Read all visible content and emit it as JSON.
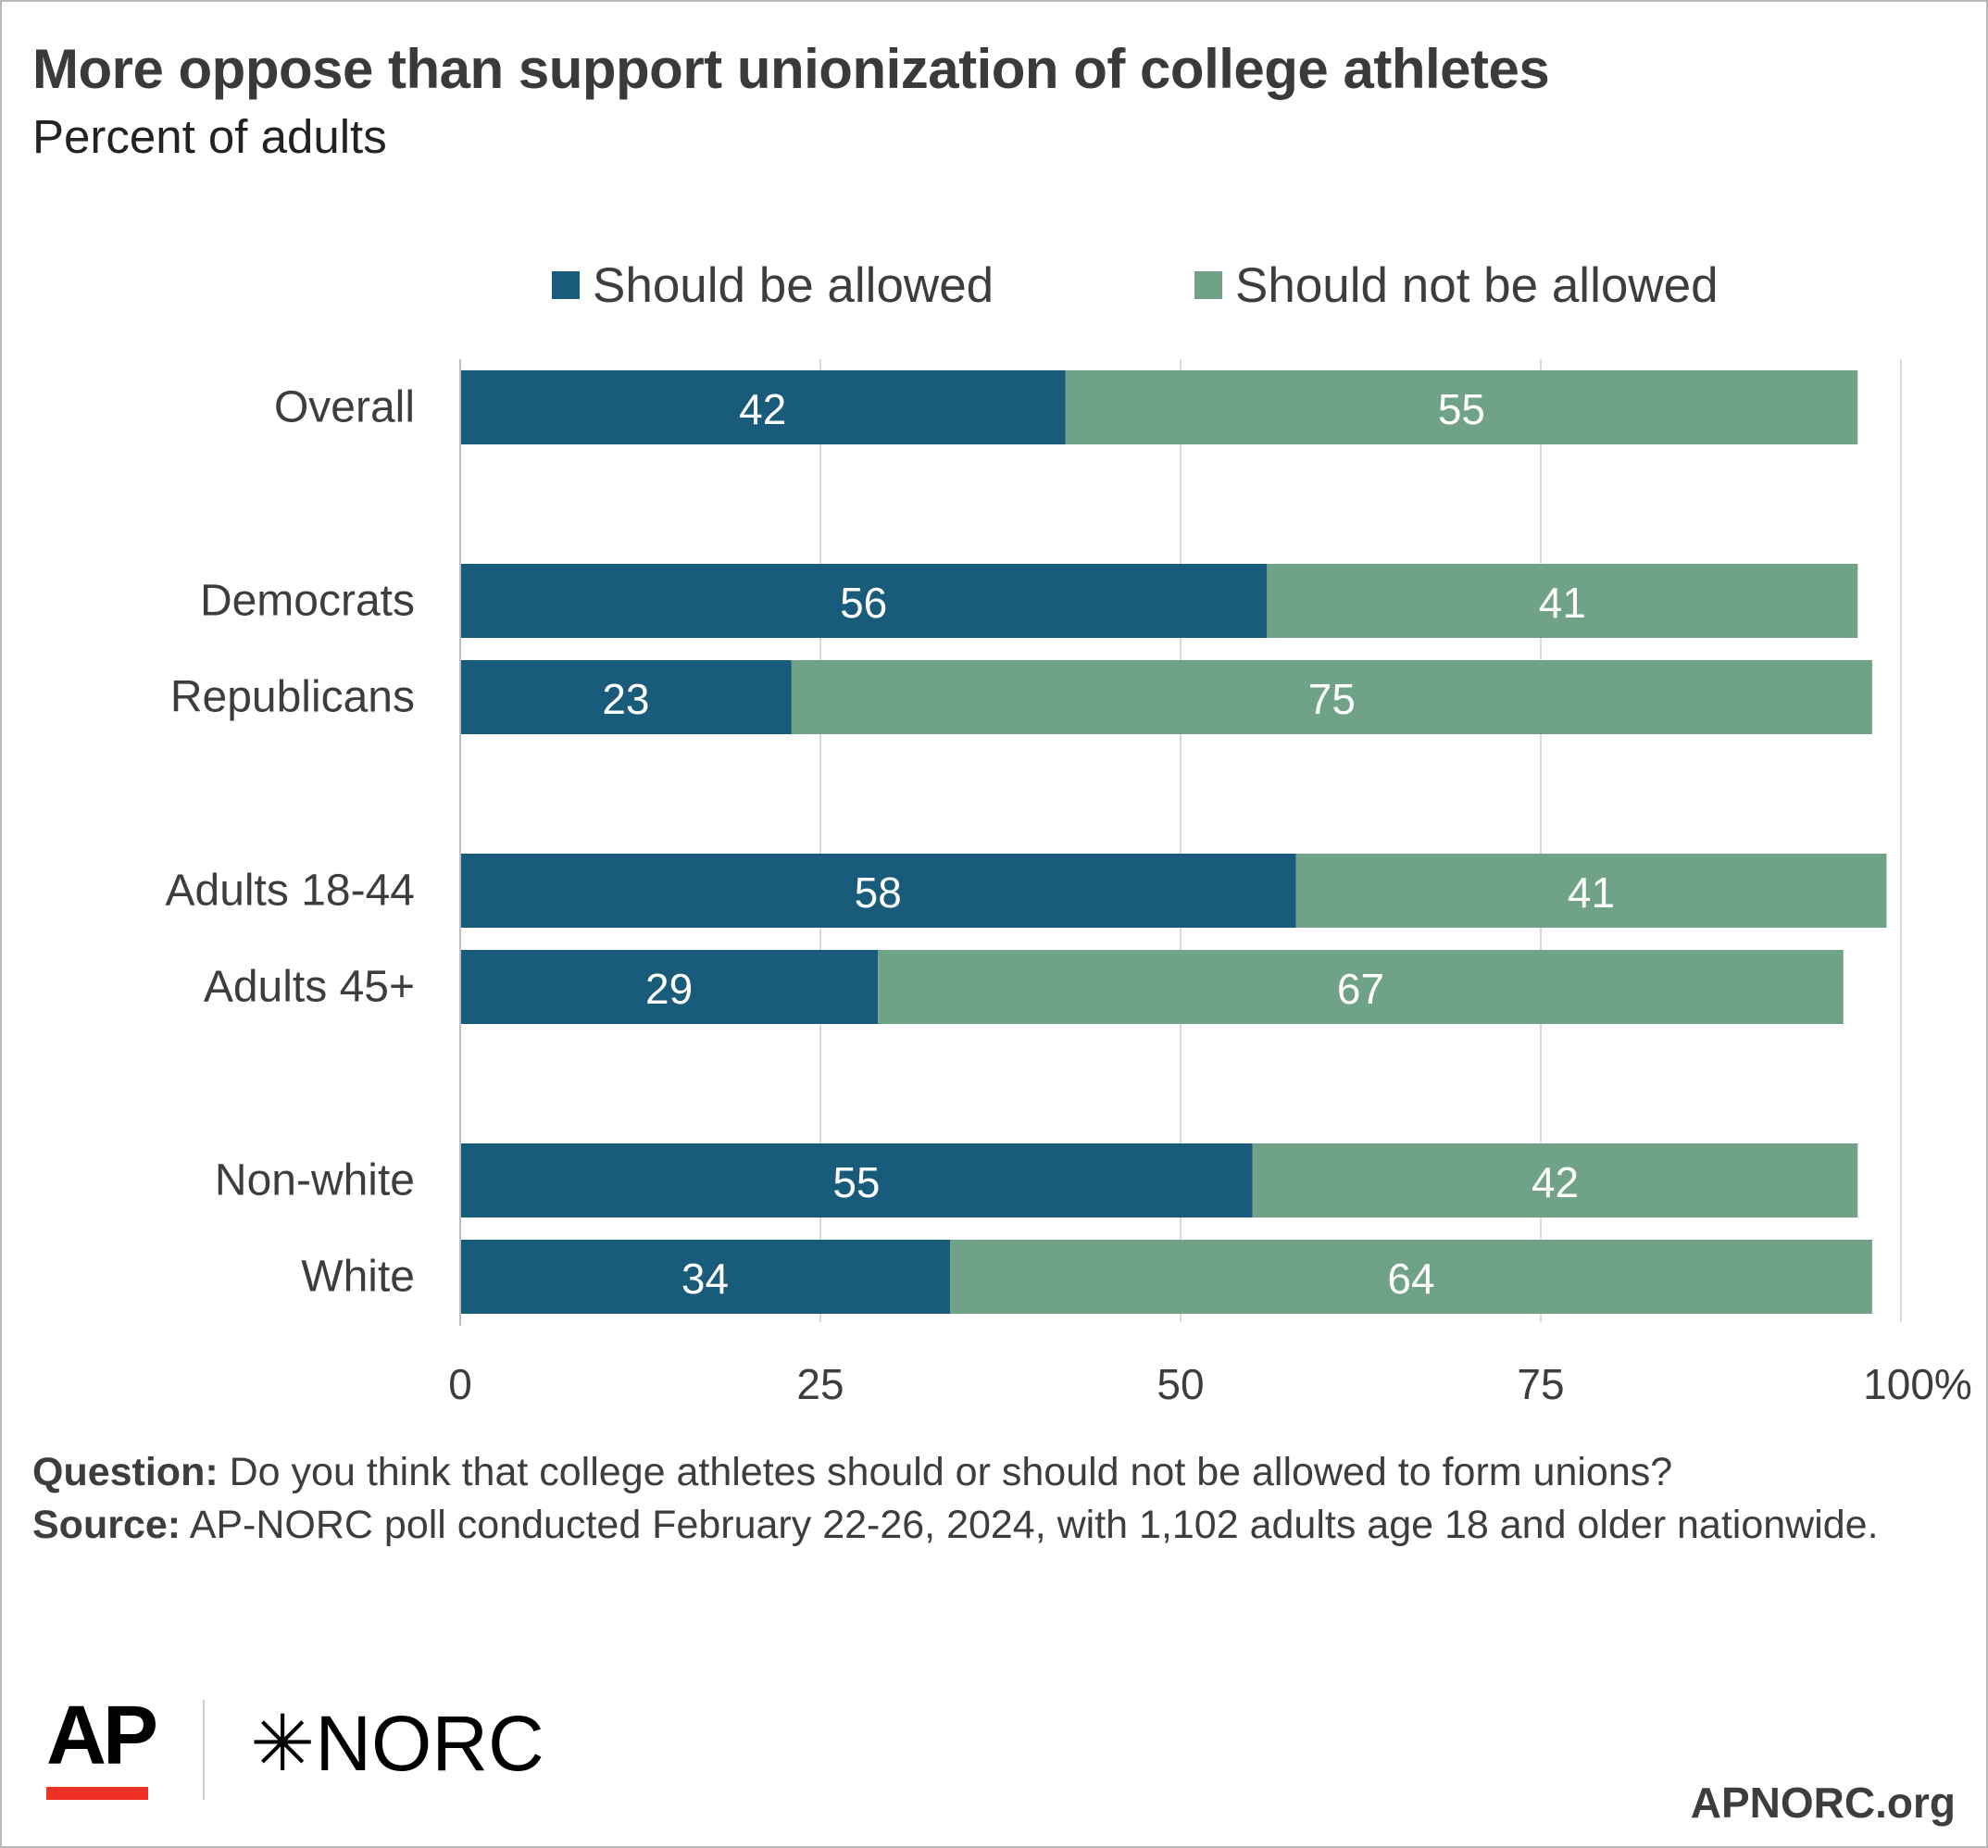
{
  "title": "More oppose than support unionization of college athletes",
  "subtitle": "Percent of adults",
  "legend": [
    {
      "label": "Should be allowed",
      "color": "#195b7b"
    },
    {
      "label": "Should not be allowed",
      "color": "#6fa287"
    }
  ],
  "chart_data": {
    "type": "bar",
    "orientation": "horizontal",
    "stacked": true,
    "categories": [
      "Overall",
      "Democrats",
      "Republicans",
      "Adults 18-44",
      "Adults 45+",
      "Non-white",
      "White"
    ],
    "series": [
      {
        "name": "Should be allowed",
        "color": "#195b7b",
        "values": [
          42,
          56,
          23,
          58,
          29,
          55,
          34
        ]
      },
      {
        "name": "Should not be allowed",
        "color": "#6fa287",
        "values": [
          55,
          41,
          75,
          41,
          67,
          42,
          64
        ]
      }
    ],
    "xlim": [
      0,
      100
    ],
    "xticks": [
      0,
      25,
      50,
      75,
      100
    ],
    "xtick_labels": [
      "0",
      "25",
      "50",
      "75",
      "100"
    ],
    "x_unit": "%",
    "grid": true,
    "legend_position": "top"
  },
  "footnote": {
    "question_label": "Question:",
    "question_text": "Do you think that college athletes should or should not be allowed to form unions?",
    "source_label": "Source:",
    "source_text": "AP-NORC poll conducted February 22-26, 2024, with 1,102 adults age 18 and older nationwide."
  },
  "logos": {
    "ap": "AP",
    "norc_mark": "✳",
    "norc": "NORC"
  },
  "footer_url": "APNORC.org"
}
